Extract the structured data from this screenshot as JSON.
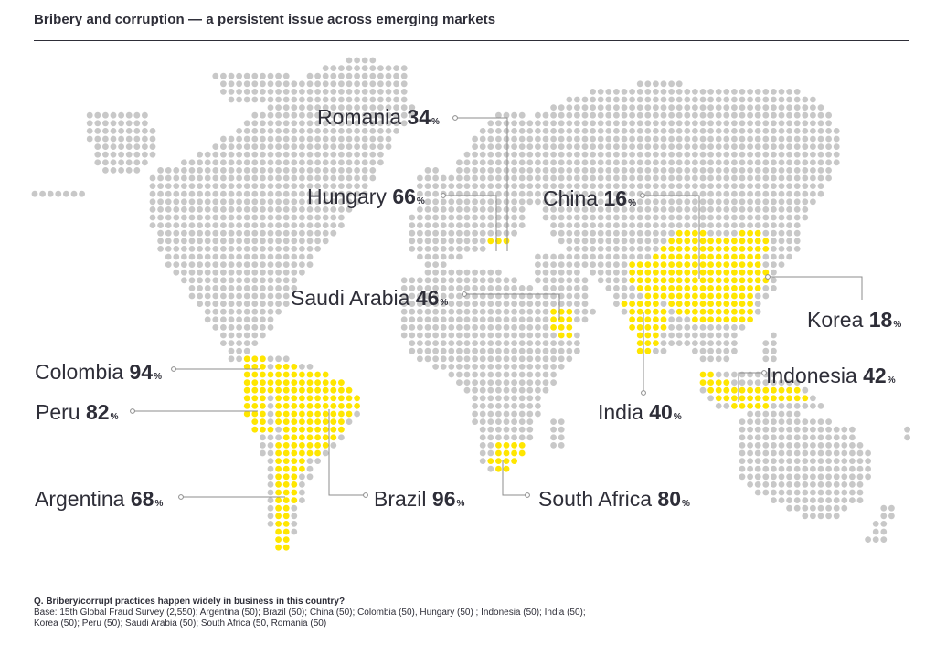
{
  "header": {
    "title": "Bribery and corruption — a persistent issue across emerging markets"
  },
  "colors": {
    "highlight": "#ffe600",
    "base_dot": "#c8c8c8",
    "text": "#2e2e38",
    "leader_line": "#8c8c8c"
  },
  "map_data": {
    "value_unit": "%",
    "countries": [
      {
        "name": "Romania",
        "value": 34
      },
      {
        "name": "Hungary",
        "value": 66
      },
      {
        "name": "China",
        "value": 16
      },
      {
        "name": "Saudi Arabia",
        "value": 46
      },
      {
        "name": "Korea",
        "value": 18
      },
      {
        "name": "Colombia",
        "value": 94
      },
      {
        "name": "Indonesia",
        "value": 42
      },
      {
        "name": "Peru",
        "value": 82
      },
      {
        "name": "India",
        "value": 40
      },
      {
        "name": "Argentina",
        "value": 68
      },
      {
        "name": "Brazil",
        "value": 96
      },
      {
        "name": "South Africa",
        "value": 80
      }
    ]
  },
  "footnote": {
    "question": "Q. Bribery/corrupt practices happen widely in business in this country?",
    "base": "Base: 15th Global Fraud Survey (2,550); Argentina (50); Brazil (50); China (50); Colombia (50), Hungary (50) ; Indonesia (50); India (50); Korea (50); Peru (50); Saudi Arabia (50); South Africa (50, Romania (50)"
  }
}
